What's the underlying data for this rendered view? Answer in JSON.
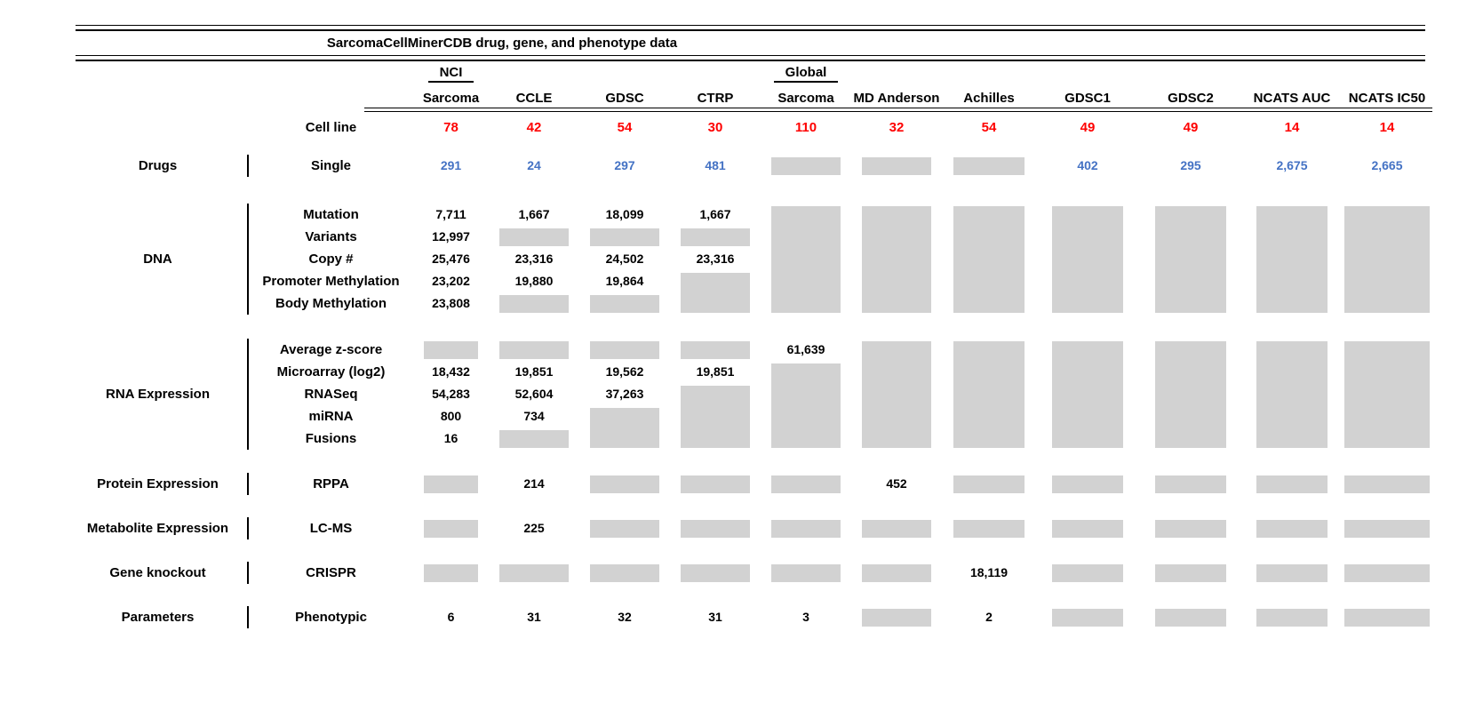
{
  "title": "SarcomaCellMinerCDB drug, gene, and phenotype data",
  "colors": {
    "cell_line_counts": "#FE0000",
    "drug_counts": "#4472C4",
    "missing_data_box": "#D2D2D2",
    "text": "#000000"
  },
  "chart_data": {
    "type": "table",
    "title": "SarcomaCellMinerCDB drug, gene, and phenotype data",
    "cell_line_label": "Cell line",
    "columns": [
      {
        "top": "NCI",
        "label": "Sarcoma",
        "cell_lines": "78"
      },
      {
        "top": "",
        "label": "CCLE",
        "cell_lines": "42"
      },
      {
        "top": "",
        "label": "GDSC",
        "cell_lines": "54"
      },
      {
        "top": "",
        "label": "CTRP",
        "cell_lines": "30"
      },
      {
        "top": "Global",
        "label": "Sarcoma",
        "cell_lines": "110"
      },
      {
        "top": "",
        "label": "MD Anderson",
        "cell_lines": "32"
      },
      {
        "top": "",
        "label": "Achilles",
        "cell_lines": "54"
      },
      {
        "top": "",
        "label": "GDSC1",
        "cell_lines": "49"
      },
      {
        "top": "",
        "label": "GDSC2",
        "cell_lines": "49"
      },
      {
        "top": "",
        "label": "NCATS AUC",
        "cell_lines": "14"
      },
      {
        "top": "",
        "label": "NCATS IC50",
        "cell_lines": "14"
      }
    ],
    "sections": [
      {
        "category": "Drugs",
        "color_key": "drug_counts",
        "rows": [
          {
            "label": "Single",
            "values": [
              "291",
              "24",
              "297",
              "481",
              null,
              null,
              null,
              "402",
              "295",
              "2,675",
              "2,665"
            ]
          }
        ]
      },
      {
        "category": "DNA",
        "color_key": "text",
        "rows": [
          {
            "label": "Mutation",
            "values": [
              "7,711",
              "1,667",
              "18,099",
              "1,667",
              null,
              null,
              null,
              null,
              null,
              null,
              null
            ]
          },
          {
            "label": "Variants",
            "values": [
              "12,997",
              null,
              null,
              null,
              null,
              null,
              null,
              null,
              null,
              null,
              null
            ]
          },
          {
            "label": "Copy #",
            "values": [
              "25,476",
              "23,316",
              "24,502",
              "23,316",
              null,
              null,
              null,
              null,
              null,
              null,
              null
            ]
          },
          {
            "label": "Promoter Methylation",
            "values": [
              "23,202",
              "19,880",
              "19,864",
              null,
              null,
              null,
              null,
              null,
              null,
              null,
              null
            ]
          },
          {
            "label": "Body Methylation",
            "values": [
              "23,808",
              null,
              null,
              null,
              null,
              null,
              null,
              null,
              null,
              null,
              null
            ]
          }
        ]
      },
      {
        "category": "RNA Expression",
        "color_key": "text",
        "rows": [
          {
            "label": "Average z-score",
            "values": [
              null,
              null,
              null,
              null,
              "61,639",
              null,
              null,
              null,
              null,
              null,
              null
            ]
          },
          {
            "label": "Microarray (log2)",
            "values": [
              "18,432",
              "19,851",
              "19,562",
              "19,851",
              null,
              null,
              null,
              null,
              null,
              null,
              null
            ]
          },
          {
            "label": "RNASeq",
            "values": [
              "54,283",
              "52,604",
              "37,263",
              null,
              null,
              null,
              null,
              null,
              null,
              null,
              null
            ]
          },
          {
            "label": "miRNA",
            "values": [
              "800",
              "734",
              null,
              null,
              null,
              null,
              null,
              null,
              null,
              null,
              null
            ]
          },
          {
            "label": "Fusions",
            "values": [
              "16",
              null,
              null,
              null,
              null,
              null,
              null,
              null,
              null,
              null,
              null
            ]
          }
        ]
      },
      {
        "category": "Protein Expression",
        "color_key": "text",
        "rows": [
          {
            "label": "RPPA",
            "values": [
              null,
              "214",
              null,
              null,
              null,
              "452",
              null,
              null,
              null,
              null,
              null
            ]
          }
        ]
      },
      {
        "category": "Metabolite Expression",
        "color_key": "text",
        "rows": [
          {
            "label": "LC-MS",
            "values": [
              null,
              "225",
              null,
              null,
              null,
              null,
              null,
              null,
              null,
              null,
              null
            ]
          }
        ]
      },
      {
        "category": "Gene knockout",
        "color_key": "text",
        "rows": [
          {
            "label": "CRISPR",
            "values": [
              null,
              null,
              null,
              null,
              null,
              null,
              "18,119",
              null,
              null,
              null,
              null
            ]
          }
        ]
      },
      {
        "category": "Parameters",
        "color_key": "text",
        "rows": [
          {
            "label": "Phenotypic",
            "values": [
              "6",
              "31",
              "32",
              "31",
              "3",
              null,
              "2",
              null,
              null,
              null,
              null
            ]
          }
        ]
      }
    ]
  }
}
